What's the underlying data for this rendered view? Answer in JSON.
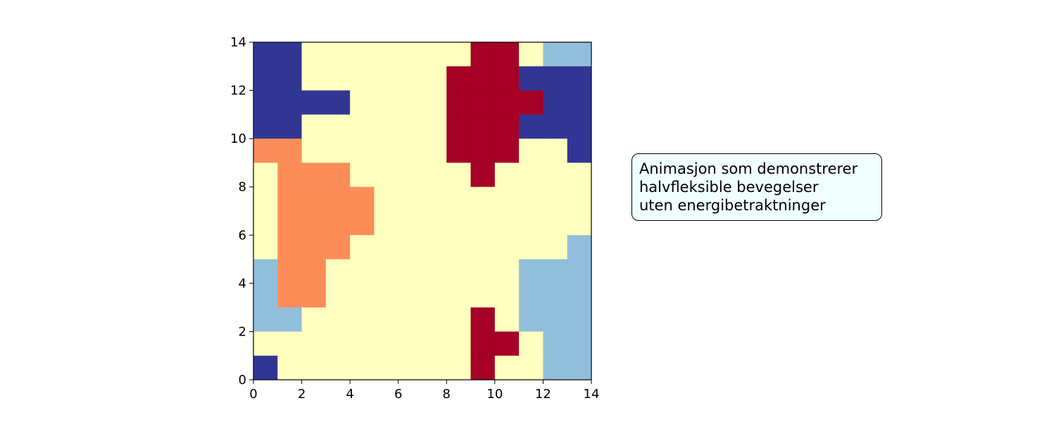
{
  "chart_data": {
    "type": "heatmap",
    "title": "",
    "xlabel": "",
    "ylabel": "",
    "xlim": [
      0,
      14
    ],
    "ylim": [
      0,
      14
    ],
    "xticks": [
      "0",
      "2",
      "4",
      "6",
      "8",
      "10",
      "12",
      "14"
    ],
    "yticks": [
      "0",
      "2",
      "4",
      "6",
      "8",
      "10",
      "12",
      "14"
    ],
    "grid": false,
    "palette": {
      "0": "#313695",
      "1": "#91bfdb",
      "2": "#ffffbf",
      "3": "#fc8d59",
      "4": "#a50026"
    },
    "rows_top_to_bottom": [
      [
        0,
        0,
        2,
        2,
        2,
        2,
        2,
        2,
        2,
        4,
        4,
        2,
        1,
        1
      ],
      [
        0,
        0,
        2,
        2,
        2,
        2,
        2,
        2,
        4,
        4,
        4,
        0,
        0,
        0
      ],
      [
        0,
        0,
        0,
        0,
        2,
        2,
        2,
        2,
        4,
        4,
        4,
        4,
        0,
        0
      ],
      [
        0,
        0,
        2,
        2,
        2,
        2,
        2,
        2,
        4,
        4,
        4,
        0,
        0,
        0
      ],
      [
        3,
        3,
        2,
        2,
        2,
        2,
        2,
        2,
        4,
        4,
        4,
        2,
        2,
        0
      ],
      [
        2,
        3,
        3,
        3,
        2,
        2,
        2,
        2,
        2,
        4,
        2,
        2,
        2,
        2
      ],
      [
        2,
        3,
        3,
        3,
        3,
        2,
        2,
        2,
        2,
        2,
        2,
        2,
        2,
        2
      ],
      [
        2,
        3,
        3,
        3,
        3,
        2,
        2,
        2,
        2,
        2,
        2,
        2,
        2,
        2
      ],
      [
        2,
        3,
        3,
        3,
        2,
        2,
        2,
        2,
        2,
        2,
        2,
        2,
        2,
        1
      ],
      [
        1,
        3,
        3,
        2,
        2,
        2,
        2,
        2,
        2,
        2,
        2,
        1,
        1,
        1
      ],
      [
        1,
        3,
        3,
        2,
        2,
        2,
        2,
        2,
        2,
        2,
        2,
        1,
        1,
        1
      ],
      [
        1,
        1,
        2,
        2,
        2,
        2,
        2,
        2,
        2,
        4,
        2,
        1,
        1,
        1
      ],
      [
        2,
        2,
        2,
        2,
        2,
        2,
        2,
        2,
        2,
        4,
        4,
        2,
        1,
        1
      ],
      [
        0,
        2,
        2,
        2,
        2,
        2,
        2,
        2,
        2,
        4,
        2,
        2,
        1,
        1
      ]
    ]
  },
  "annotation": {
    "lines": [
      "Animasjon som demonstrerer",
      "halvfleksible bevegelser",
      "uten energibetraktninger"
    ]
  }
}
